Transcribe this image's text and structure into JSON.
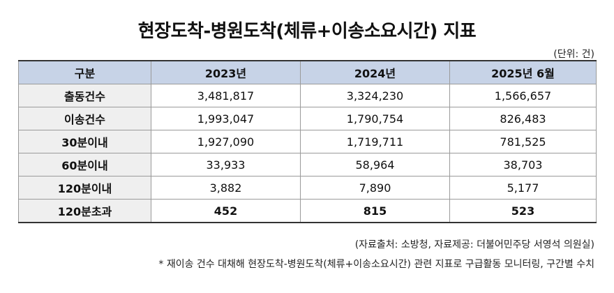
{
  "title": "현장도착-병원도착(체류+이송소요시간) 지표",
  "unit": "(단위: 건)",
  "table": {
    "headers": [
      "구분",
      "2023년",
      "2024년",
      "2025년 6월"
    ],
    "rows": [
      {
        "label": "출동건수",
        "values": [
          "3,481,817",
          "3,324,230",
          "1,566,657"
        ]
      },
      {
        "label": "이송건수",
        "values": [
          "1,993,047",
          "1,790,754",
          "826,483"
        ]
      },
      {
        "label": "30분이내",
        "values": [
          "1,927,090",
          "1,719,711",
          "781,525"
        ]
      },
      {
        "label": "60분이내",
        "values": [
          "33,933",
          "58,964",
          "38,703"
        ]
      },
      {
        "label": "120분이내",
        "values": [
          "3,882",
          "7,890",
          "5,177"
        ]
      },
      {
        "label": "120분초과",
        "values": [
          "452",
          "815",
          "523"
        ]
      }
    ]
  },
  "source": "(자료출처: 소방청, 자료제공: 더불어민주당 서영석 의원실)",
  "note": "* 재이송 건수 대채해 현장도착-병원도착(체류+이송소요시간) 관련 지표로 구급활동 모니터링, 구간별 수치",
  "colors": {
    "header_bg": "#c7d3e7",
    "label_bg": "#efefef",
    "border": "#9a9a9a"
  }
}
